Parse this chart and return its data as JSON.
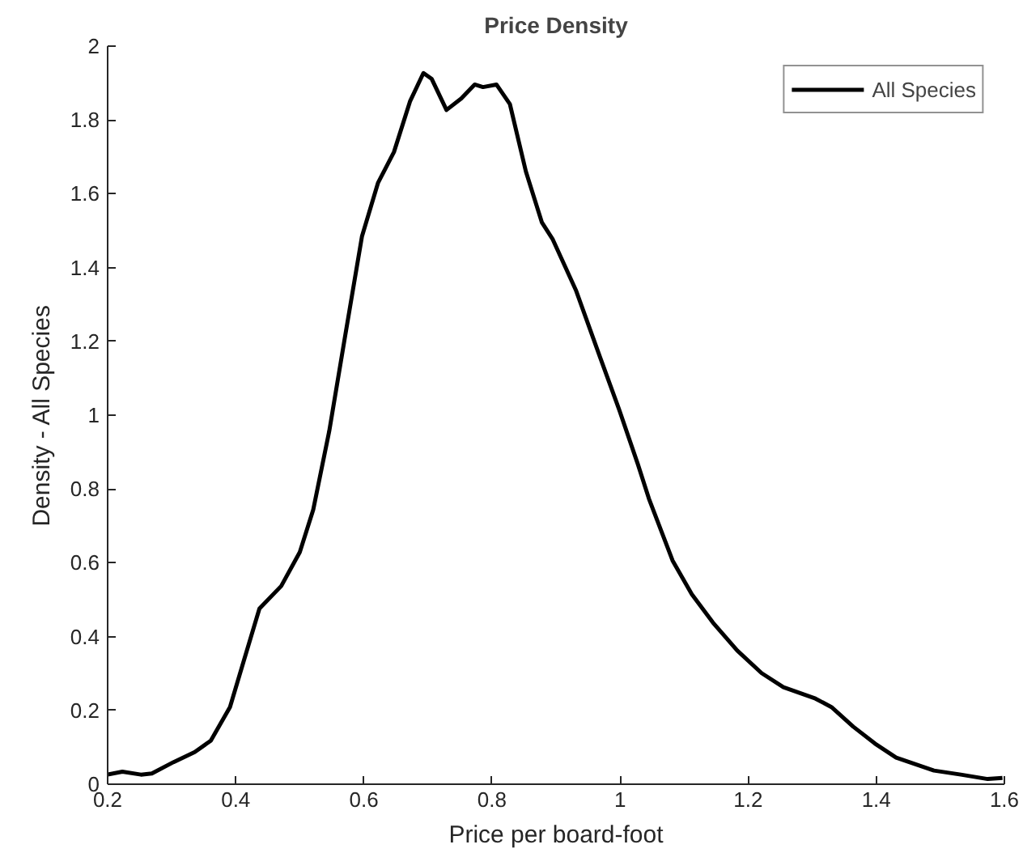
{
  "chart_data": {
    "type": "line",
    "title": "Price Density",
    "xlabel": "Price per board-foot",
    "ylabel": "Density - All Species",
    "series": [
      {
        "name": "All Species",
        "color": "#000000",
        "x": [
          0.2,
          0.223,
          0.252,
          0.269,
          0.303,
          0.336,
          0.361,
          0.391,
          0.412,
          0.437,
          0.471,
          0.5,
          0.521,
          0.546,
          0.571,
          0.597,
          0.622,
          0.647,
          0.672,
          0.693,
          0.706,
          0.729,
          0.752,
          0.773,
          0.786,
          0.807,
          0.828,
          0.853,
          0.878,
          0.895,
          0.931,
          0.969,
          0.998,
          1.028,
          1.045,
          1.082,
          1.112,
          1.145,
          1.183,
          1.221,
          1.255,
          1.305,
          1.33,
          1.364,
          1.398,
          1.431,
          1.49,
          1.532,
          1.574,
          1.597
        ],
        "values": [
          0.026,
          0.034,
          0.026,
          0.029,
          0.06,
          0.087,
          0.118,
          0.209,
          0.331,
          0.476,
          0.537,
          0.629,
          0.744,
          0.957,
          1.217,
          1.484,
          1.629,
          1.713,
          1.85,
          1.927,
          1.911,
          1.827,
          1.858,
          1.896,
          1.889,
          1.896,
          1.843,
          1.66,
          1.522,
          1.476,
          1.339,
          1.156,
          1.018,
          0.866,
          0.774,
          0.606,
          0.515,
          0.438,
          0.362,
          0.301,
          0.263,
          0.232,
          0.209,
          0.156,
          0.11,
          0.072,
          0.037,
          0.026,
          0.014,
          0.017
        ]
      }
    ],
    "xlim": [
      0.2,
      1.6
    ],
    "xticks": [
      0.2,
      0.4,
      0.6,
      0.8,
      1,
      1.2,
      1.4,
      1.6
    ],
    "ylim": [
      0,
      2
    ],
    "yticks": [
      0,
      0.2,
      0.4,
      0.6,
      0.8,
      1,
      1.2,
      1.4,
      1.6,
      1.8,
      2
    ],
    "grid": false,
    "legend": "top right",
    "marker": "none",
    "line_style": "solid"
  }
}
